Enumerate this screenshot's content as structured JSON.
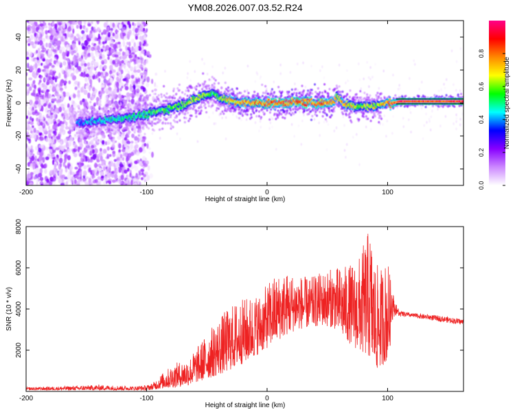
{
  "figure": {
    "title": "YM08.2026.007.03.52.R24"
  },
  "colors": {
    "snr_line": "#ee2222",
    "axis": "#000000",
    "background": "#ffffff"
  },
  "chart_data": [
    {
      "type": "heatmap",
      "title": "YM08.2026.007.03.52.R24",
      "xlabel": "Height of straight line (km)",
      "ylabel": "Frequency (Hz)",
      "xlim": [
        -200,
        163
      ],
      "ylim": [
        -50,
        50
      ],
      "x_ticks": [
        -200,
        -100,
        0,
        100
      ],
      "x_tick_labels": [
        "-200",
        "-100",
        "0",
        "100"
      ],
      "y_ticks": [
        -40,
        -20,
        0,
        20,
        40
      ],
      "y_tick_labels": [
        "-40",
        "-20",
        "0",
        "20",
        "40"
      ],
      "colorbar": {
        "label": "Normalized spectral amplitude",
        "range": [
          0.0,
          1.0
        ],
        "ticks": [
          0.0,
          0.2,
          0.4,
          0.6,
          0.8
        ],
        "tick_labels": [
          "0.0",
          "0.2",
          "0.4",
          "0.6",
          "0.8"
        ],
        "colormap": [
          "#ffffff",
          "#cc88ff",
          "#8800ff",
          "#0000ff",
          "#00ffff",
          "#00ff00",
          "#ffff00",
          "#ff8800",
          "#ff0000",
          "#ff0088"
        ]
      },
      "ridge": {
        "x": [
          -155,
          -140,
          -120,
          -100,
          -85,
          -70,
          -60,
          -52,
          -45,
          -38,
          -30,
          -20,
          -10,
          0,
          10,
          20,
          30,
          40,
          50,
          55,
          58,
          61,
          65,
          75,
          85,
          95,
          100,
          105,
          110,
          163
        ],
        "frequency": [
          -12,
          -11,
          -9,
          -7,
          -4,
          -1,
          2,
          5,
          6,
          3,
          1,
          0,
          0,
          0,
          0,
          0.5,
          0.5,
          0,
          0,
          1,
          4,
          1,
          -1,
          -2,
          -2,
          -1,
          0,
          0,
          1,
          1
        ],
        "peak_amplitude": [
          0.45,
          0.5,
          0.55,
          0.6,
          0.65,
          0.7,
          0.72,
          0.7,
          0.6,
          0.7,
          0.85,
          0.9,
          0.92,
          0.95,
          0.95,
          0.95,
          0.95,
          0.95,
          0.95,
          0.9,
          0.75,
          0.9,
          0.85,
          0.75,
          0.7,
          0.8,
          0.95,
          1.0,
          1.0,
          1.0
        ]
      },
      "noise_region_x": [
        -200,
        -100
      ]
    },
    {
      "type": "line",
      "xlabel": "Height of straight line (km)",
      "ylabel": "SNR (10 * v/v)",
      "xlim": [
        -200,
        163
      ],
      "ylim": [
        0,
        8000
      ],
      "x_ticks": [
        -200,
        -100,
        0,
        100
      ],
      "x_tick_labels": [
        "-200",
        "-100",
        "0",
        "100"
      ],
      "y_ticks": [
        2000,
        4000,
        6000,
        8000
      ],
      "y_tick_labels": [
        "2000",
        "4000",
        "6000",
        "8000"
      ],
      "series": [
        {
          "name": "SNR",
          "envelope_x": [
            -200,
            -160,
            -140,
            -110,
            -100,
            -95,
            -85,
            -75,
            -65,
            -55,
            -45,
            -35,
            -25,
            -15,
            -5,
            5,
            15,
            25,
            35,
            45,
            55,
            65,
            75,
            85,
            90,
            95,
            100,
            103,
            106,
            110,
            120,
            140,
            163
          ],
          "lower": [
            60,
            60,
            60,
            60,
            60,
            80,
            150,
            200,
            300,
            500,
            700,
            900,
            1200,
            1500,
            1900,
            2300,
            2700,
            3000,
            3100,
            3200,
            3100,
            2500,
            2000,
            1600,
            1000,
            1200,
            1500,
            2500,
            3400,
            3500,
            3500,
            3300,
            3100
          ],
          "upper": [
            200,
            260,
            320,
            250,
            300,
            400,
            1000,
            1400,
            1600,
            2400,
            3200,
            3900,
            4400,
            4600,
            4800,
            5600,
            5800,
            5700,
            5500,
            5800,
            6000,
            6100,
            6300,
            8000,
            6200,
            6000,
            6500,
            5200,
            4400,
            3900,
            3800,
            3700,
            3500
          ]
        }
      ]
    }
  ]
}
